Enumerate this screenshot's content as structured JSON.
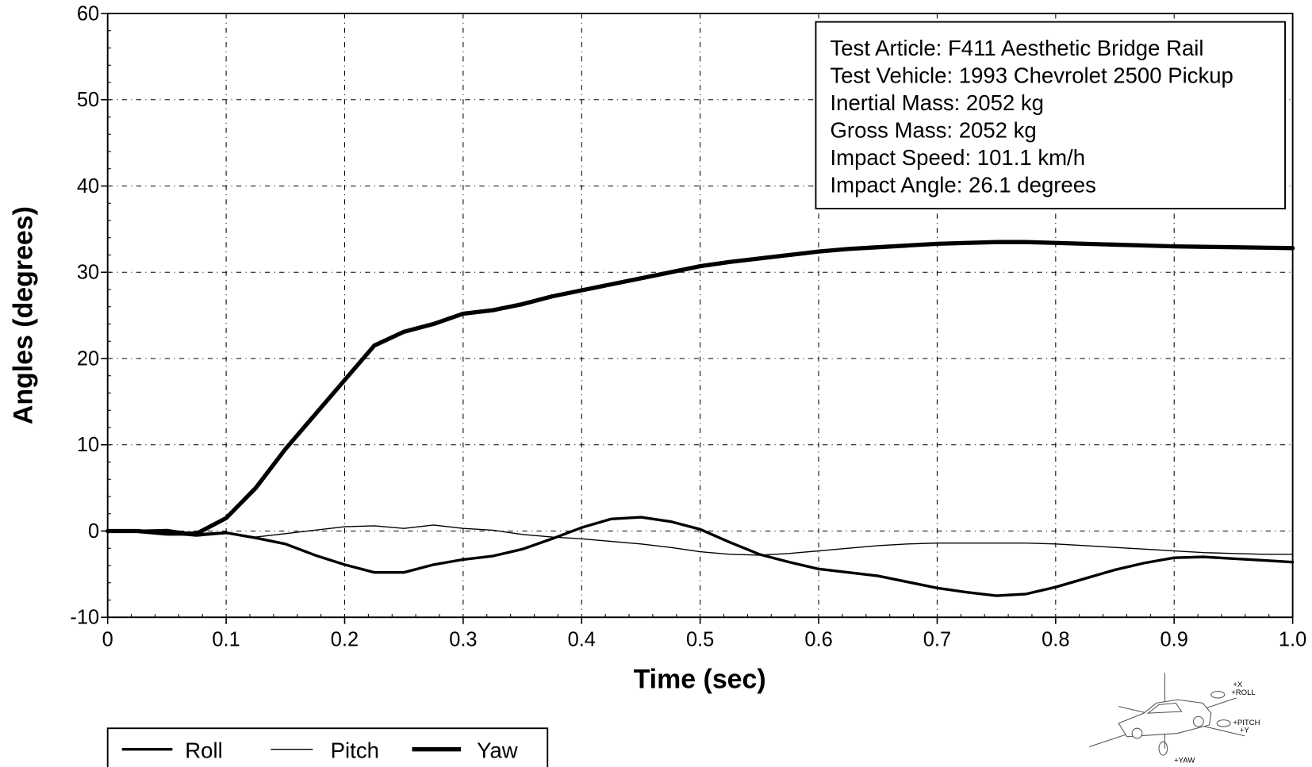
{
  "chart_data": {
    "type": "line",
    "xlabel": "Time (sec)",
    "ylabel": "Angles (degrees)",
    "annotation_lines": [
      "Test Article: F411 Aesthetic Bridge Rail",
      "Test Vehicle: 1993 Chevrolet 2500 Pickup",
      "Inertial Mass: 2052 kg",
      "Gross Mass: 2052 kg",
      "Impact Speed: 101.1 km/h",
      "Impact Angle: 26.1 degrees"
    ],
    "icon_labels": [
      "+X",
      "+ROLL",
      "+PITCH",
      "+Y",
      "+YAW"
    ],
    "x": [
      0,
      0.025,
      0.05,
      0.075,
      0.1,
      0.125,
      0.15,
      0.175,
      0.2,
      0.225,
      0.25,
      0.275,
      0.3,
      0.325,
      0.35,
      0.375,
      0.4,
      0.425,
      0.45,
      0.475,
      0.5,
      0.525,
      0.55,
      0.575,
      0.6,
      0.625,
      0.65,
      0.675,
      0.7,
      0.725,
      0.75,
      0.775,
      0.8,
      0.825,
      0.85,
      0.875,
      0.9,
      0.925,
      0.95,
      0.975,
      1.0
    ],
    "series": [
      {
        "name": "Roll",
        "color": "#000000",
        "linewidth": 3.2,
        "values": [
          0,
          0,
          0.1,
          -0.4,
          -0.2,
          -0.8,
          -1.5,
          -2.8,
          -3.9,
          -4.8,
          -4.8,
          -3.9,
          -3.3,
          -2.9,
          -2.1,
          -0.9,
          0.4,
          1.4,
          1.6,
          1.1,
          0.2,
          -1.3,
          -2.7,
          -3.6,
          -4.4,
          -4.8,
          -5.2,
          -5.9,
          -6.6,
          -7.1,
          -7.5,
          -7.3,
          -6.5,
          -5.5,
          -4.5,
          -3.7,
          -3.1,
          -3,
          -3.2,
          -3.4,
          -3.6
        ]
      },
      {
        "name": "Pitch",
        "color": "#000000",
        "linewidth": 1.3,
        "values": [
          0,
          0,
          -0.3,
          -0.6,
          -0.3,
          -0.7,
          -0.3,
          0.1,
          0.5,
          0.6,
          0.3,
          0.7,
          0.3,
          0.1,
          -0.4,
          -0.7,
          -0.9,
          -1.2,
          -1.5,
          -1.9,
          -2.4,
          -2.7,
          -2.8,
          -2.6,
          -2.3,
          -2,
          -1.7,
          -1.5,
          -1.4,
          -1.4,
          -1.4,
          -1.4,
          -1.5,
          -1.7,
          -1.9,
          -2.1,
          -2.3,
          -2.5,
          -2.6,
          -2.7,
          -2.7
        ]
      },
      {
        "name": "Yaw",
        "color": "#000000",
        "linewidth": 5,
        "values": [
          0,
          0,
          -0.3,
          -0.3,
          1.5,
          5,
          9.5,
          13.5,
          17.5,
          21.5,
          23.1,
          24,
          25.2,
          25.6,
          26.3,
          27.2,
          27.9,
          28.6,
          29.3,
          30,
          30.7,
          31.2,
          31.6,
          32,
          32.4,
          32.7,
          32.9,
          33.1,
          33.3,
          33.4,
          33.5,
          33.5,
          33.4,
          33.3,
          33.2,
          33.1,
          33,
          32.95,
          32.9,
          32.85,
          32.8
        ]
      }
    ],
    "xlim": [
      0,
      1
    ],
    "ylim": [
      -10,
      60
    ],
    "xticks": [
      0,
      0.1,
      0.2,
      0.3,
      0.4,
      0.5,
      0.6,
      0.7,
      0.8,
      0.9,
      {
        "value": 1,
        "label": "1.0"
      }
    ],
    "yticks": [
      -10,
      0,
      10,
      20,
      30,
      40,
      50,
      60
    ],
    "grid": true
  }
}
